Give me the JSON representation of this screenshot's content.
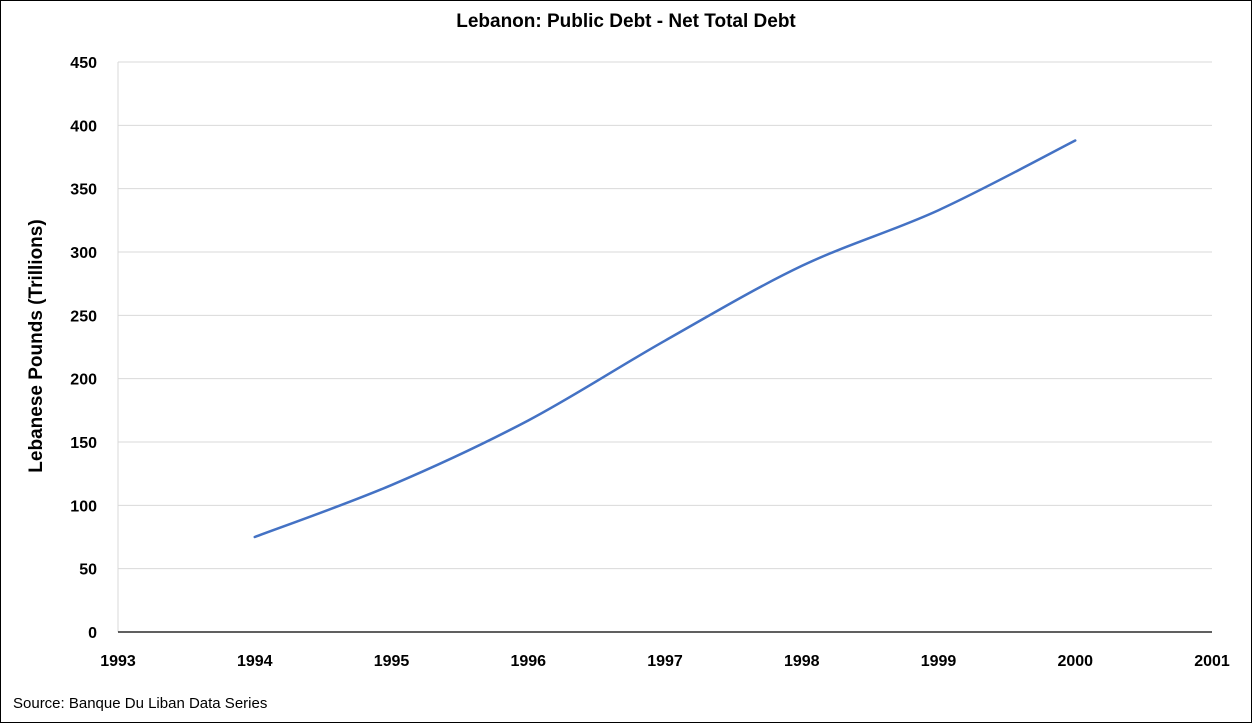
{
  "chart_data": {
    "type": "line",
    "title": "Lebanon: Public Debt - Net Total Debt",
    "xlabel": "",
    "ylabel": "Lebanese Pounds (Trillions)",
    "source": "Source: Banque Du Liban Data Series",
    "xlim": [
      1993,
      2001
    ],
    "ylim": [
      0,
      450
    ],
    "xticks": [
      "1993",
      "1994",
      "1995",
      "1996",
      "1997",
      "1998",
      "1999",
      "2000",
      "2001"
    ],
    "yticks": [
      "0",
      "50",
      "100",
      "150",
      "200",
      "250",
      "300",
      "350",
      "400",
      "450"
    ],
    "grid": true,
    "legend": "none",
    "series": [
      {
        "x": [
          1994,
          1995,
          1996,
          1997,
          1998,
          1999,
          2000
        ],
        "values": [
          75,
          116,
          167,
          230,
          289,
          333,
          388
        ],
        "color": "#4472C4"
      }
    ]
  }
}
